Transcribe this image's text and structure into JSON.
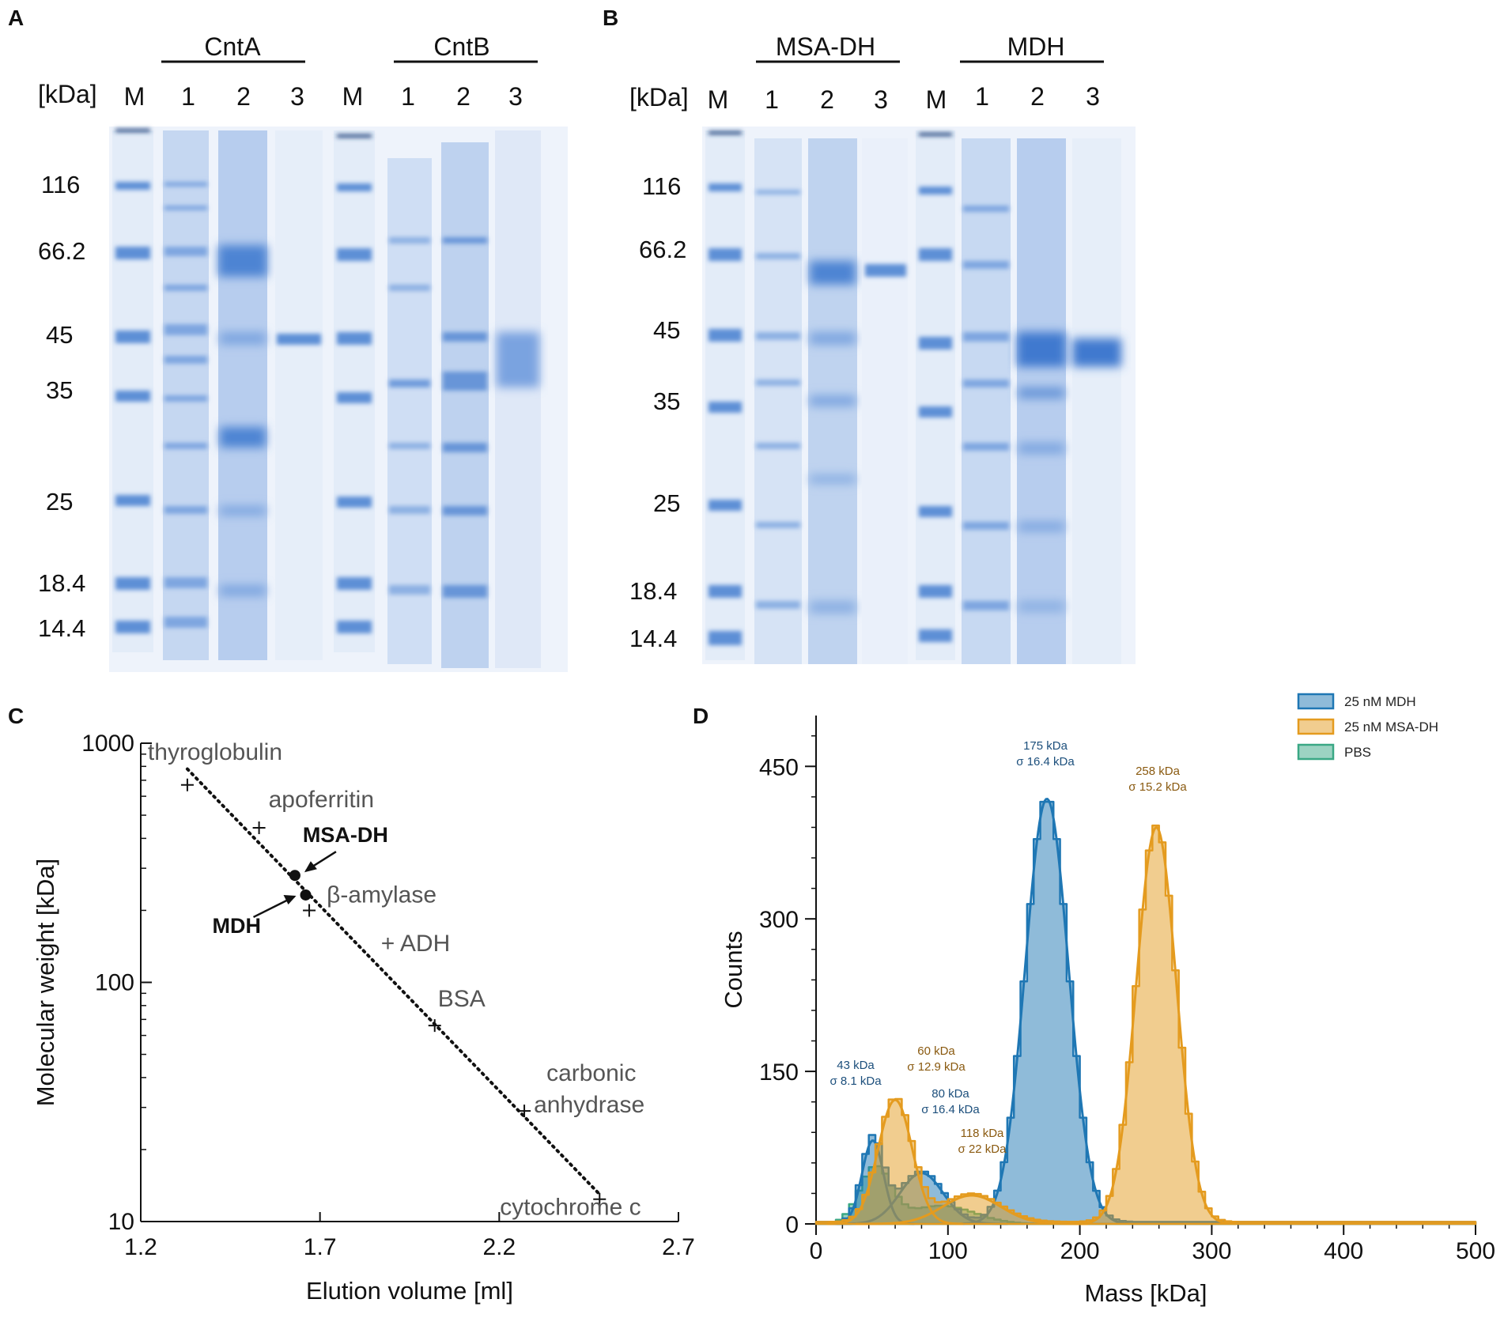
{
  "panels": {
    "A": {
      "letter": "A",
      "kda_unit": "[kDa]",
      "groups": [
        {
          "name": "CntA",
          "lanes": [
            "1",
            "2",
            "3"
          ]
        },
        {
          "name": "CntB",
          "lanes": [
            "1",
            "2",
            "3"
          ]
        }
      ],
      "marker_label": "M",
      "markers": [
        "116",
        "66.2",
        "45",
        "35",
        "25",
        "18.4",
        "14.4"
      ]
    },
    "B": {
      "letter": "B",
      "kda_unit": "[kDa]",
      "groups": [
        {
          "name": "MSA-DH",
          "lanes": [
            "1",
            "2",
            "3"
          ]
        },
        {
          "name": "MDH",
          "lanes": [
            "1",
            "2",
            "3"
          ]
        }
      ],
      "marker_label": "M",
      "markers": [
        "116",
        "66.2",
        "45",
        "35",
        "25",
        "18.4",
        "14.4"
      ]
    },
    "C": {
      "letter": "C"
    },
    "D": {
      "letter": "D"
    }
  },
  "chart_data": [
    {
      "panel": "C",
      "type": "scatter",
      "xlabel": "Elution volume [ml]",
      "ylabel": "Molecular weight [kDa]",
      "xlim": [
        1.2,
        2.7
      ],
      "ylim": [
        10,
        1000
      ],
      "yscale": "log",
      "xticks": [
        "1.2",
        "1.7",
        "2.2",
        "2.7"
      ],
      "yticks": [
        "10",
        "100",
        "1000"
      ],
      "standards": [
        {
          "name": "thyroglobulin",
          "x": 1.33,
          "y": 669
        },
        {
          "name": "apoferritin",
          "x": 1.53,
          "y": 443
        },
        {
          "name": "β-amylase",
          "x": 1.67,
          "y": 200
        },
        {
          "name": "+ ADH",
          "x": 1.87,
          "y": 150
        },
        {
          "name": "BSA",
          "x": 2.02,
          "y": 66
        },
        {
          "name": "carbonic",
          "name2": "anhydrase",
          "x": 2.27,
          "y": 29
        },
        {
          "name": "cytochrome c",
          "x": 2.48,
          "y": 12.4
        }
      ],
      "samples": [
        {
          "name": "MSA-DH",
          "x": 1.63,
          "y": 280
        },
        {
          "name": "MDH",
          "x": 1.66,
          "y": 232
        }
      ],
      "fit_line": {
        "x": [
          1.33,
          2.48
        ],
        "y": [
          780,
          13
        ]
      }
    },
    {
      "panel": "D",
      "type": "line",
      "xlabel": "Mass [kDa]",
      "ylabel": "Counts",
      "xlim": [
        0,
        500
      ],
      "ylim": [
        0,
        500
      ],
      "xticks": [
        "0",
        "100",
        "200",
        "300",
        "400",
        "500"
      ],
      "yticks": [
        "0",
        "150",
        "300",
        "450"
      ],
      "legend": [
        "25 nM MDH",
        "25 nM MSA-DH",
        "PBS"
      ],
      "colors": {
        "MDH": "#1f77b4",
        "MSA-DH": "#e49b1f",
        "PBS": "#3aa885"
      },
      "series": [
        {
          "name": "25 nM MDH",
          "peaks": [
            {
              "mu": 43,
              "sigma": 8.1,
              "amp": 82
            },
            {
              "mu": 80,
              "sigma": 16.4,
              "amp": 50
            },
            {
              "mu": 175,
              "sigma": 16.4,
              "amp": 418
            }
          ]
        },
        {
          "name": "25 nM MSA-DH",
          "peaks": [
            {
              "mu": 60,
              "sigma": 12.9,
              "amp": 122
            },
            {
              "mu": 118,
              "sigma": 22,
              "amp": 28
            },
            {
              "mu": 258,
              "sigma": 15.2,
              "amp": 390
            }
          ]
        },
        {
          "name": "PBS",
          "peaks": [
            {
              "mu": 45,
              "sigma": 12,
              "amp": 55
            },
            {
              "mu": 95,
              "sigma": 25,
              "amp": 18
            }
          ]
        }
      ],
      "annotations": [
        {
          "series": "MDH",
          "line1": "175 kDa",
          "line2": "σ 16.4 kDa"
        },
        {
          "series": "MSA-DH",
          "line1": "258 kDa",
          "line2": "σ 15.2 kDa"
        },
        {
          "series": "MDH",
          "line1": "43 kDa",
          "line2": "σ 8.1 kDa"
        },
        {
          "series": "MSA-DH",
          "line1": "60 kDa",
          "line2": "σ 12.9 kDa"
        },
        {
          "series": "MDH",
          "line1": "80 kDa",
          "line2": "σ 16.4 kDa"
        },
        {
          "series": "MSA-DH",
          "line1": "118 kDa",
          "line2": "σ 22 kDa"
        }
      ]
    }
  ]
}
